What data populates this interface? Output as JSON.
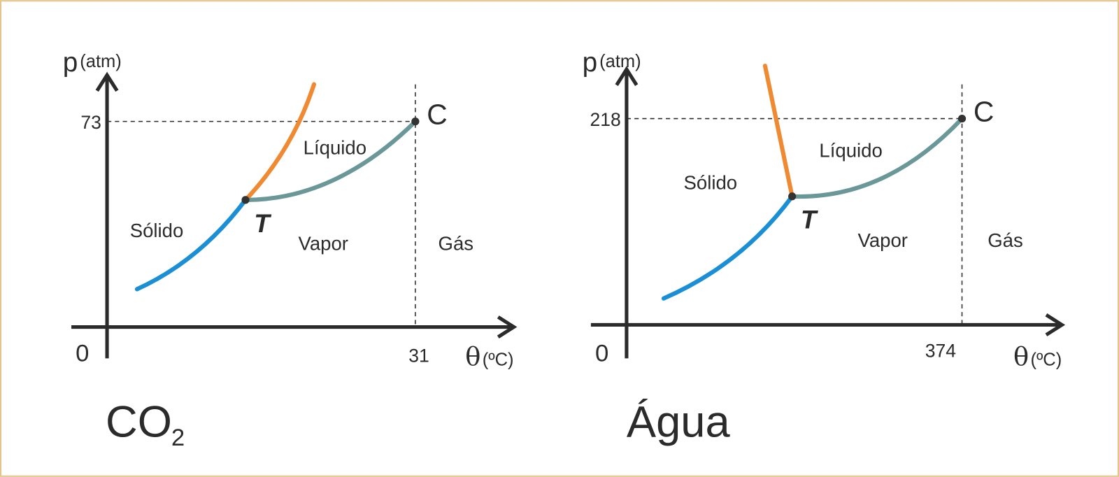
{
  "diagrams": [
    {
      "title": "CO",
      "title_subscript": "2",
      "y_label": "p",
      "y_unit": "(atm)",
      "x_label": "θ",
      "x_unit": "(ºC)",
      "origin": "0",
      "critical_pressure": 73,
      "critical_temperature": 31,
      "regions": [
        "Sólido",
        "Líquido",
        "Vapor",
        "Gás"
      ],
      "triple_point": "T",
      "critical_point": "C"
    },
    {
      "title": "Água",
      "y_label": "p",
      "y_unit": "(atm)",
      "x_label": "θ",
      "x_unit": "(ºC)",
      "origin": "0",
      "critical_pressure": 218,
      "critical_temperature": 374,
      "regions": [
        "Sólido",
        "Líquido",
        "Vapor",
        "Gás"
      ],
      "triple_point": "T",
      "critical_point": "C"
    }
  ]
}
